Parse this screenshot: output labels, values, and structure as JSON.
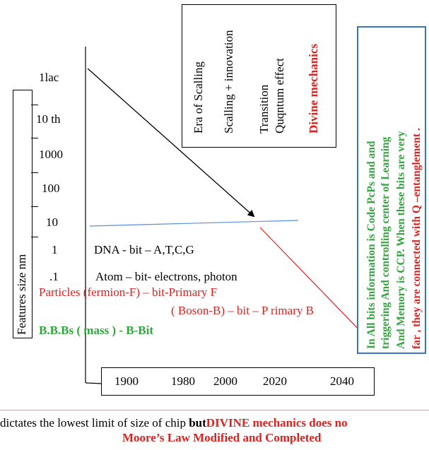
{
  "y_axis": {
    "label": "Features size  nm",
    "ticks": [
      "1lac",
      "10 th",
      "1000",
      "100",
      "10",
      "1",
      ".1"
    ]
  },
  "rows": {
    "dna": "DNA  - bit – A,T,C,G",
    "atom": "Atom – bit- electrons, photon",
    "particles": "Particles (fermion-F) – bit-Primary F",
    "boson": "( Boson-B) – bit – P rimary B",
    "bbbs": "B.B.Bs  ( mass )  - B-Bit"
  },
  "eras": [
    {
      "text": "Era of Scalling",
      "color": "#000000"
    },
    {
      "text": "Scalling + innovation",
      "color": "#000000"
    },
    {
      "text": "Transition",
      "color": "#000000"
    },
    {
      "text": "Quqntum effect",
      "color": "#000000"
    },
    {
      "text": "Divine mechanics",
      "color": "#e0201e"
    }
  ],
  "side_note": {
    "lines": [
      {
        "text": "In All bits information is Code  PcPs and and",
        "color": "#2ea63a"
      },
      {
        "text": "triggering And controlling center of Learning",
        "color": "#2ea63a"
      },
      {
        "text": "And Memory    is CCP. When these bits are very",
        "color": "#2ea63a"
      },
      {
        "text": "far , they are connected with Q –entanglement .",
        "color": "#e0201e"
      }
    ],
    "border_color": "#3b73c4"
  },
  "x_axis": {
    "years": [
      "1900",
      "1980",
      "2000",
      "2020",
      "2040"
    ]
  },
  "footer": {
    "line1_a": "dictates the lowest limit of size of chip ",
    "line1_b": "but",
    "line1_c": "DIVINE mechanics does no",
    "line2": "Moore’s Law Modified and Completed"
  },
  "colors": {
    "red": "#e0201e",
    "green": "#2ea63a",
    "blue_line": "#5b8fd6",
    "blue_border": "#3b73c4"
  }
}
